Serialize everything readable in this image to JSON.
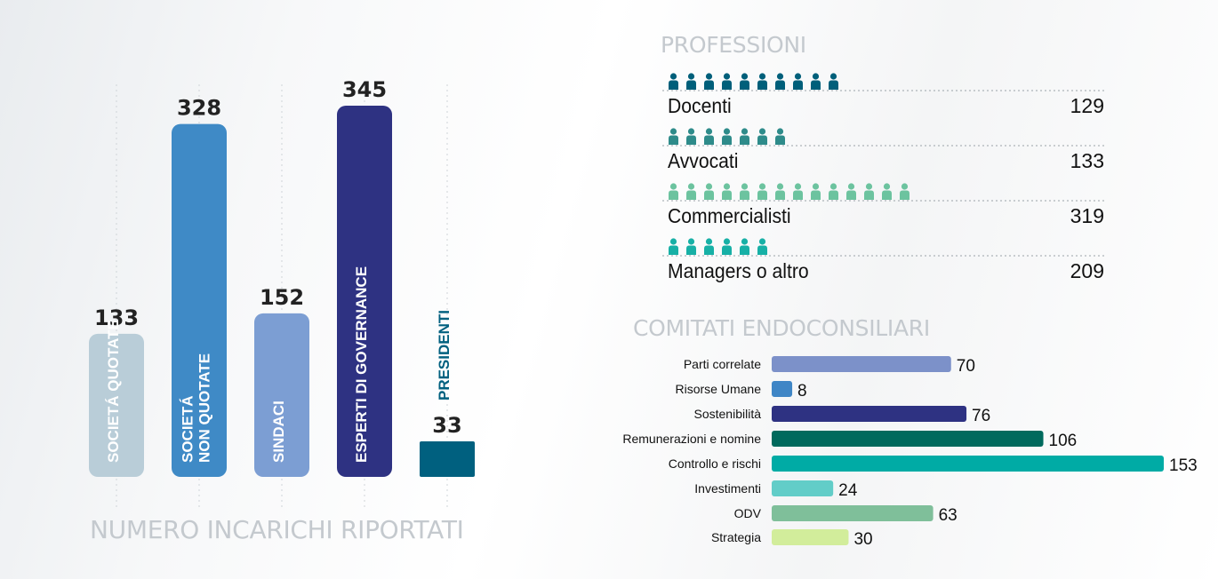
{
  "left_title": "NUMERO INCARICHI RIPORTATI",
  "prof_title": "PROFESSIONI",
  "com_title": "COMITATI ENDOCONSILIARI",
  "chart_data": [
    {
      "type": "bar",
      "title": "NUMERO INCARICHI RIPORTATI",
      "categories": [
        [
          "SOCIETÁ QUOTATE"
        ],
        [
          "SOCIETÁ",
          "NON QUOTATE"
        ],
        [
          "SINDACI"
        ],
        [
          "ESPERTI DI GOVERNANCE"
        ],
        [
          "PRESIDENTI"
        ]
      ],
      "values": [
        133,
        328,
        152,
        345,
        33
      ],
      "colors": [
        "#b9cdd8",
        "#3f8ac6",
        "#7c9ed3",
        "#2e3282",
        "#00607f"
      ],
      "label_colors": [
        "#ffffff",
        "#ffffff",
        "#ffffff",
        "#ffffff",
        "#00607f"
      ],
      "ylim": [
        0,
        345
      ],
      "grid": true
    },
    {
      "type": "pictogram",
      "title": "PROFESSIONI",
      "rows": [
        {
          "label": "Docenti",
          "value": 129,
          "icons": 10,
          "color": "#005f7a"
        },
        {
          "label": "Avvocati",
          "value": 133,
          "icons": 7,
          "color": "#2e8b8a"
        },
        {
          "label": "Commercialisti",
          "value": 319,
          "icons": 14,
          "color": "#6cc39f"
        },
        {
          "label": "Managers o altro",
          "value": 209,
          "icons": 6,
          "color": "#17b0a6"
        }
      ]
    },
    {
      "type": "bar",
      "orientation": "horizontal",
      "title": "COMITATI ENDOCONSILIARI",
      "categories": [
        "Parti correlate",
        "Risorse Umane",
        "Sostenibilità",
        "Remunerazioni e nomine",
        "Controllo e rischi",
        "Investimenti",
        "ODV",
        "Strategia"
      ],
      "values": [
        70,
        8,
        76,
        106,
        153,
        24,
        63,
        30
      ],
      "colors": [
        "#7c91c9",
        "#3f86c6",
        "#2e3282",
        "#006a5d",
        "#00aba5",
        "#62cdc8",
        "#7fbf9a",
        "#d2ed9b"
      ],
      "xlim": [
        0,
        153
      ]
    }
  ]
}
